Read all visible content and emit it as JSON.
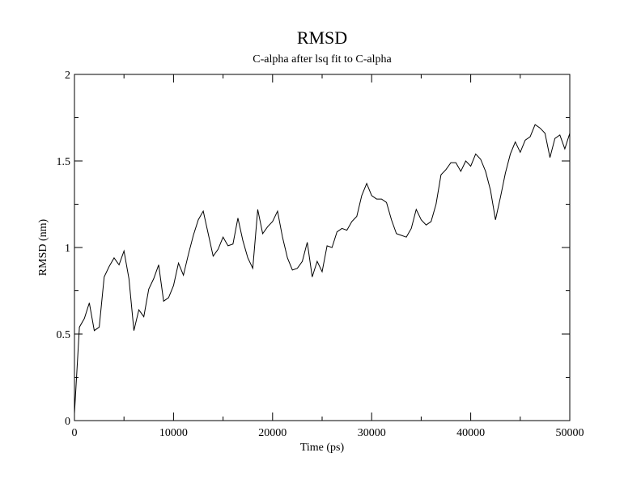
{
  "chart_data": {
    "type": "line",
    "title": "RMSD",
    "subtitle": "C-alpha after lsq fit to C-alpha",
    "xlabel": "Time (ps)",
    "ylabel": "RMSD (nm)",
    "xlim": [
      0,
      50000
    ],
    "ylim": [
      0,
      2
    ],
    "xticks": [
      0,
      10000,
      20000,
      30000,
      40000,
      50000
    ],
    "yticks": [
      0,
      0.5,
      1,
      1.5,
      2
    ],
    "xtick_labels": [
      "0",
      "10000",
      "20000",
      "30000",
      "40000",
      "50000"
    ],
    "ytick_labels": [
      "0",
      "0.5",
      "1",
      "1.5",
      "2"
    ],
    "grid": false,
    "legend": "none",
    "line_color": "#000000",
    "series": [
      {
        "x": [
          0,
          500,
          1000,
          1500,
          2000,
          2500,
          3000,
          3500,
          4000,
          4500,
          5000,
          5500,
          6000,
          6500,
          7000,
          7500,
          8000,
          8500,
          9000,
          9500,
          10000,
          10500,
          11000,
          11500,
          12000,
          12500,
          13000,
          13500,
          14000,
          14500,
          15000,
          15500,
          16000,
          16500,
          17000,
          17500,
          18000,
          18500,
          19000,
          19500,
          20000,
          20500,
          21000,
          21500,
          22000,
          22500,
          23000,
          23500,
          24000,
          24500,
          25000,
          25500,
          26000,
          26500,
          27000,
          27500,
          28000,
          28500,
          29000,
          29500,
          30000,
          30500,
          31000,
          31500,
          32000,
          32500,
          33000,
          33500,
          34000,
          34500,
          35000,
          35500,
          36000,
          36500,
          37000,
          37500,
          38000,
          38500,
          39000,
          39500,
          40000,
          40500,
          41000,
          41500,
          42000,
          42500,
          43000,
          43500,
          44000,
          44500,
          45000,
          45500,
          46000,
          46500,
          47000,
          47500,
          48000,
          48500,
          49000,
          49500,
          50000
        ],
        "y": [
          0.04,
          0.54,
          0.59,
          0.68,
          0.52,
          0.54,
          0.83,
          0.89,
          0.94,
          0.9,
          0.98,
          0.82,
          0.52,
          0.64,
          0.6,
          0.76,
          0.82,
          0.9,
          0.69,
          0.71,
          0.78,
          0.91,
          0.84,
          0.96,
          1.07,
          1.16,
          1.21,
          1.08,
          0.95,
          0.99,
          1.06,
          1.01,
          1.02,
          1.17,
          1.04,
          0.94,
          0.88,
          1.22,
          1.08,
          1.12,
          1.15,
          1.21,
          1.06,
          0.94,
          0.87,
          0.88,
          0.92,
          1.03,
          0.83,
          0.92,
          0.86,
          1.01,
          1.0,
          1.09,
          1.11,
          1.1,
          1.15,
          1.18,
          1.3,
          1.37,
          1.3,
          1.28,
          1.28,
          1.26,
          1.16,
          1.08,
          1.07,
          1.06,
          1.11,
          1.22,
          1.16,
          1.13,
          1.15,
          1.25,
          1.42,
          1.45,
          1.49,
          1.49,
          1.44,
          1.5,
          1.47,
          1.54,
          1.51,
          1.44,
          1.33,
          1.16,
          1.29,
          1.43,
          1.54,
          1.61,
          1.55,
          1.62,
          1.64,
          1.71,
          1.69,
          1.66,
          1.52,
          1.63,
          1.65,
          1.57,
          1.66
        ]
      }
    ]
  }
}
